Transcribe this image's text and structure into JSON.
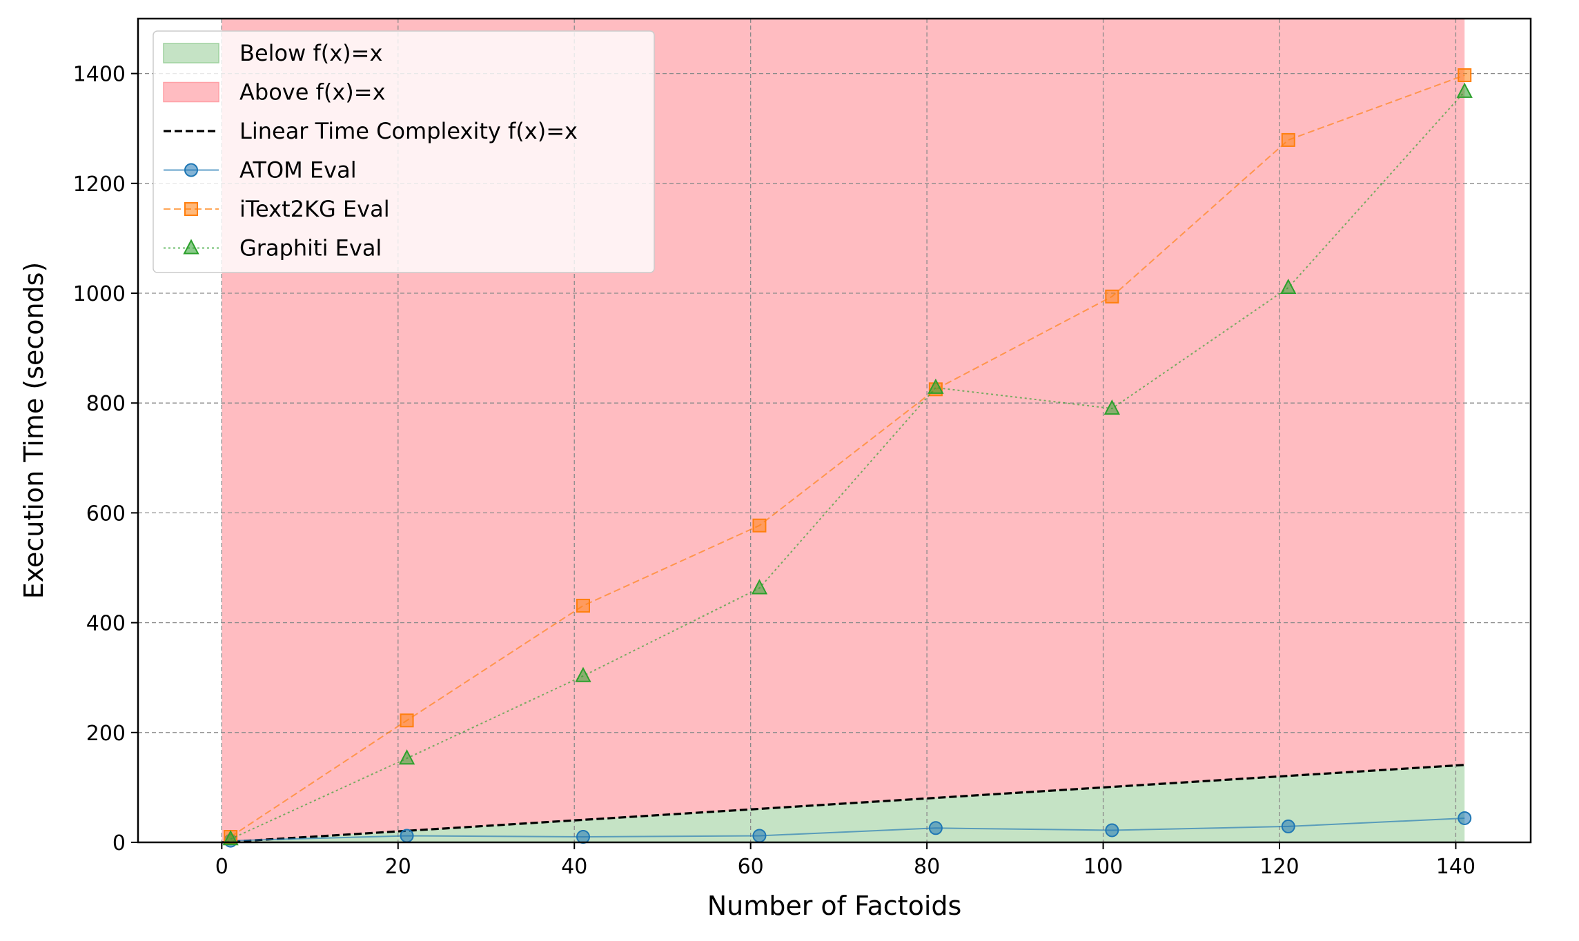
{
  "chart_data": {
    "type": "line",
    "xlabel": "Number of Factoids",
    "ylabel": "Execution Time (seconds)",
    "xlim": [
      -9.5,
      148.5
    ],
    "ylim": [
      0,
      1500
    ],
    "x_ticks": [
      0,
      20,
      40,
      60,
      80,
      100,
      120,
      140
    ],
    "y_ticks": [
      0,
      200,
      400,
      600,
      800,
      1000,
      1200,
      1400
    ],
    "grid": true,
    "legend_position": "top-left",
    "x": [
      1,
      21,
      41,
      61,
      81,
      101,
      121,
      141
    ],
    "regions": [
      {
        "name": "Below f(x)=x",
        "kind": "fill-below-line",
        "color": "#9fd19f"
      },
      {
        "name": "Above f(x)=x",
        "kind": "fill-above-line",
        "color": "#ffa0a6"
      }
    ],
    "reference_line": {
      "name": "Linear Time Complexity f(x)=x",
      "x": [
        0,
        141
      ],
      "y": [
        0,
        141
      ],
      "style": "dashed",
      "color": "#000000"
    },
    "series": [
      {
        "name": "ATOM Eval",
        "values": [
          3,
          12,
          10,
          12,
          26,
          22,
          29,
          44
        ],
        "color": "#1f77b4",
        "marker": "circle",
        "line_style": "solid"
      },
      {
        "name": "iText2KG Eval",
        "values": [
          10,
          222,
          431,
          577,
          825,
          994,
          1279,
          1397
        ],
        "color": "#ff7f0e",
        "marker": "square",
        "line_style": "dashed"
      },
      {
        "name": "Graphiti Eval",
        "values": [
          6,
          153,
          303,
          463,
          828,
          790,
          1010,
          1367
        ],
        "color": "#2ca02c",
        "marker": "triangle",
        "line_style": "dotted"
      }
    ]
  }
}
